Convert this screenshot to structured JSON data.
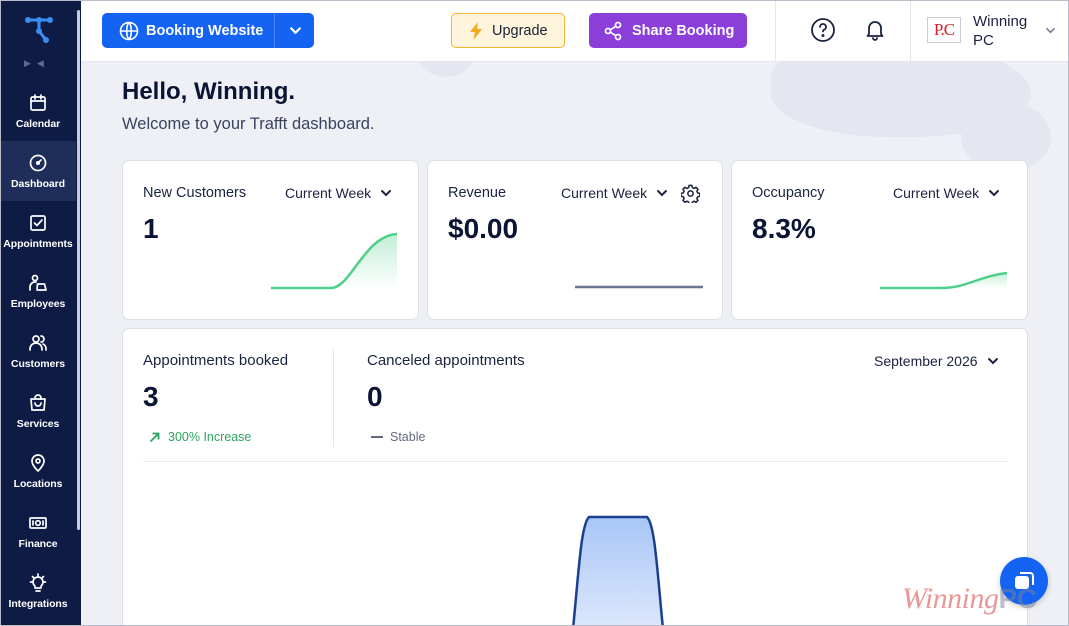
{
  "sidebar": {
    "items": [
      {
        "label": "Calendar",
        "icon": "calendar-icon"
      },
      {
        "label": "Dashboard",
        "icon": "dashboard-icon",
        "active": true
      },
      {
        "label": "Appointments",
        "icon": "appointments-icon"
      },
      {
        "label": "Employees",
        "icon": "employees-icon"
      },
      {
        "label": "Customers",
        "icon": "customers-icon"
      },
      {
        "label": "Services",
        "icon": "services-icon"
      },
      {
        "label": "Locations",
        "icon": "location-pin-icon"
      },
      {
        "label": "Finance",
        "icon": "finance-icon"
      },
      {
        "label": "Integrations",
        "icon": "integrations-icon"
      }
    ]
  },
  "header": {
    "booking_label": "Booking Website",
    "upgrade_label": "Upgrade",
    "share_label": "Share Booking",
    "user_name_line1": "Winning",
    "user_name_line2": "PC",
    "user_logo_text": "P.C"
  },
  "greeting": {
    "title": "Hello, Winning.",
    "subtitle": "Welcome to your Trafft dashboard."
  },
  "cards": {
    "new_customers": {
      "title": "New Customers",
      "period": "Current Week",
      "value": "1"
    },
    "revenue": {
      "title": "Revenue",
      "period": "Current Week",
      "value": "$0.00"
    },
    "occupancy": {
      "title": "Occupancy",
      "period": "Current Week",
      "value": "8.3%"
    }
  },
  "appointments": {
    "booked_title": "Appointments booked",
    "booked_value": "3",
    "booked_trend": "300% Increase",
    "canceled_title": "Canceled appointments",
    "canceled_value": "0",
    "canceled_trend": "Stable",
    "month": "September 2026"
  },
  "colors": {
    "sidebar_bg": "#0d1b45",
    "primary": "#1463f3",
    "share": "#8b3fd8",
    "upgrade_bg": "#fff5dd",
    "spark_green": "#4fcf8a",
    "positive": "#2aa55e"
  },
  "watermark": {
    "script": "Winning",
    "mark": "PC"
  }
}
